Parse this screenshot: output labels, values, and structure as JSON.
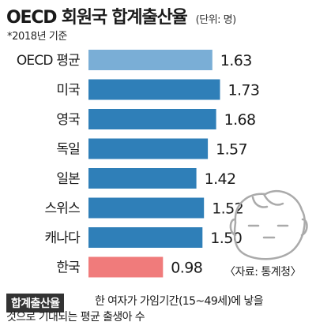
{
  "header": {
    "title": "OECD 회원국 합계출산율",
    "unit": "(단위: 명)",
    "subtitle": "*2018년 기준"
  },
  "chart_data": {
    "type": "bar",
    "orientation": "horizontal",
    "title": "OECD 회원국 합계출산율",
    "categories": [
      "OECD 평균",
      "미국",
      "영국",
      "독일",
      "일본",
      "스위스",
      "캐나다",
      "한국"
    ],
    "values": [
      1.63,
      1.73,
      1.68,
      1.57,
      1.42,
      1.52,
      1.5,
      0.98
    ],
    "value_labels": [
      "1.63",
      "1.73",
      "1.68",
      "1.57",
      "1.42",
      "1.52",
      "1.50",
      "0.98"
    ],
    "colors": [
      "#7aaed6",
      "#2f7fb8",
      "#2f7fb8",
      "#2f7fb8",
      "#2f7fb8",
      "#2f7fb8",
      "#2f7fb8",
      "#f07b7b"
    ],
    "xlim": [
      0,
      1.85
    ],
    "grid": false,
    "legend": "none"
  },
  "source": "〈자료: 통계청〉",
  "note": {
    "badge": "합계출산율",
    "line1": "한 여자가 가임기간(15~49세)에 낳을",
    "line2": "것으로 기대되는 평균 출생아 수"
  },
  "illustration": {
    "icon": "baby-face-icon"
  }
}
